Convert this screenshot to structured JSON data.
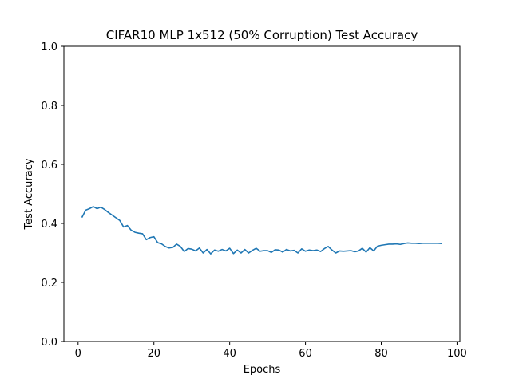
{
  "chart_data": {
    "type": "line",
    "title": "CIFAR10 MLP 1x512 (50% Corruption) Test Accuracy",
    "xlabel": "Epochs",
    "ylabel": "Test Accuracy",
    "xlim": [
      -3.75,
      100.75
    ],
    "ylim": [
      0.0,
      1.0
    ],
    "xticks": [
      0,
      20,
      40,
      60,
      80,
      100
    ],
    "yticks": [
      0.0,
      0.2,
      0.4,
      0.6,
      0.8,
      1.0
    ],
    "xtick_labels": [
      "0",
      "20",
      "40",
      "60",
      "80",
      "100"
    ],
    "ytick_labels": [
      "0.0",
      "0.2",
      "0.4",
      "0.6",
      "0.8",
      "1.0"
    ],
    "grid": false,
    "line_color": "#1f77b4",
    "series": [
      {
        "x": [
          1,
          2,
          3,
          4,
          5,
          6,
          7,
          8,
          9,
          10,
          11,
          12,
          13,
          14,
          15,
          16,
          17,
          18,
          19,
          20,
          21,
          22,
          23,
          24,
          25,
          26,
          27,
          28,
          29,
          30,
          31,
          32,
          33,
          34,
          35,
          36,
          37,
          38,
          39,
          40,
          41,
          42,
          43,
          44,
          45,
          46,
          47,
          48,
          49,
          50,
          51,
          52,
          53,
          54,
          55,
          56,
          57,
          58,
          59,
          60,
          61,
          62,
          63,
          64,
          65,
          66,
          67,
          68,
          69,
          70,
          71,
          72,
          73,
          74,
          75,
          76,
          77,
          78,
          79,
          80,
          81,
          82,
          83,
          84,
          85,
          86,
          87,
          88,
          89,
          90,
          91,
          92,
          93,
          94,
          95,
          96
        ],
        "values": [
          0.42,
          0.445,
          0.45,
          0.457,
          0.45,
          0.455,
          0.447,
          0.437,
          0.428,
          0.419,
          0.41,
          0.388,
          0.393,
          0.377,
          0.37,
          0.367,
          0.365,
          0.345,
          0.352,
          0.355,
          0.335,
          0.331,
          0.322,
          0.317,
          0.319,
          0.33,
          0.322,
          0.305,
          0.315,
          0.313,
          0.307,
          0.317,
          0.3,
          0.312,
          0.297,
          0.31,
          0.306,
          0.312,
          0.307,
          0.316,
          0.298,
          0.31,
          0.3,
          0.312,
          0.3,
          0.309,
          0.316,
          0.306,
          0.308,
          0.308,
          0.302,
          0.311,
          0.31,
          0.303,
          0.312,
          0.307,
          0.309,
          0.3,
          0.314,
          0.306,
          0.31,
          0.308,
          0.31,
          0.305,
          0.315,
          0.322,
          0.31,
          0.3,
          0.307,
          0.306,
          0.307,
          0.308,
          0.304,
          0.307,
          0.316,
          0.303,
          0.318,
          0.307,
          0.323,
          0.326,
          0.328,
          0.33,
          0.33,
          0.331,
          0.329,
          0.332,
          0.334,
          0.333,
          0.333,
          0.332,
          0.333,
          0.333,
          0.333,
          0.333,
          0.333,
          0.332
        ]
      }
    ]
  }
}
